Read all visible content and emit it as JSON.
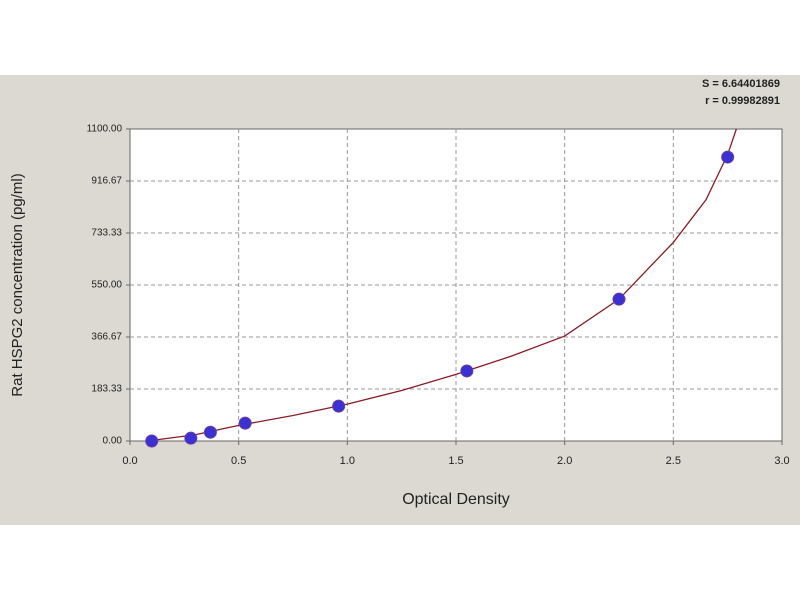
{
  "chart_data": {
    "type": "scatter",
    "x_label": "Optical Density",
    "y_label": "Rat HSPG2 concentration (pg/ml)",
    "annotations": [
      "S = 6.64401869",
      "r = 0.99982891"
    ],
    "x": [
      0.1,
      0.28,
      0.37,
      0.53,
      0.96,
      1.55,
      2.25,
      2.75
    ],
    "values": [
      0,
      10,
      31,
      63,
      123,
      247,
      500,
      1001
    ],
    "color": "#3b2fd6",
    "fit": {
      "x": [
        0.08,
        0.3,
        0.5,
        0.75,
        1.0,
        1.25,
        1.5,
        1.75,
        2.0,
        2.25,
        2.5,
        2.65,
        2.75,
        2.79
      ],
      "values": [
        0,
        22,
        55,
        90,
        130,
        178,
        235,
        298,
        370,
        500,
        700,
        850,
        1010,
        1100
      ],
      "color": "#8b1c24"
    },
    "xlim": [
      0,
      3
    ],
    "xticks": [
      {
        "value": 0,
        "label": "0.0"
      },
      0.5,
      {
        "value": 1,
        "label": "1.0"
      },
      1.5,
      {
        "value": 2,
        "label": "2.0"
      },
      2.5,
      {
        "value": 3,
        "label": "3.0"
      }
    ],
    "ylim": [
      0,
      1100
    ],
    "yticks": [
      {
        "value": 0,
        "label": "0.00"
      },
      {
        "value": 183.33,
        "label": "183.33"
      },
      {
        "value": 366.67,
        "label": "366.67"
      },
      {
        "value": 550,
        "label": "550.00"
      },
      {
        "value": 733.33,
        "label": "733.33"
      },
      {
        "value": 916.67,
        "label": "916.67"
      },
      {
        "value": 1100,
        "label": "1100.00"
      }
    ],
    "grid": true
  }
}
